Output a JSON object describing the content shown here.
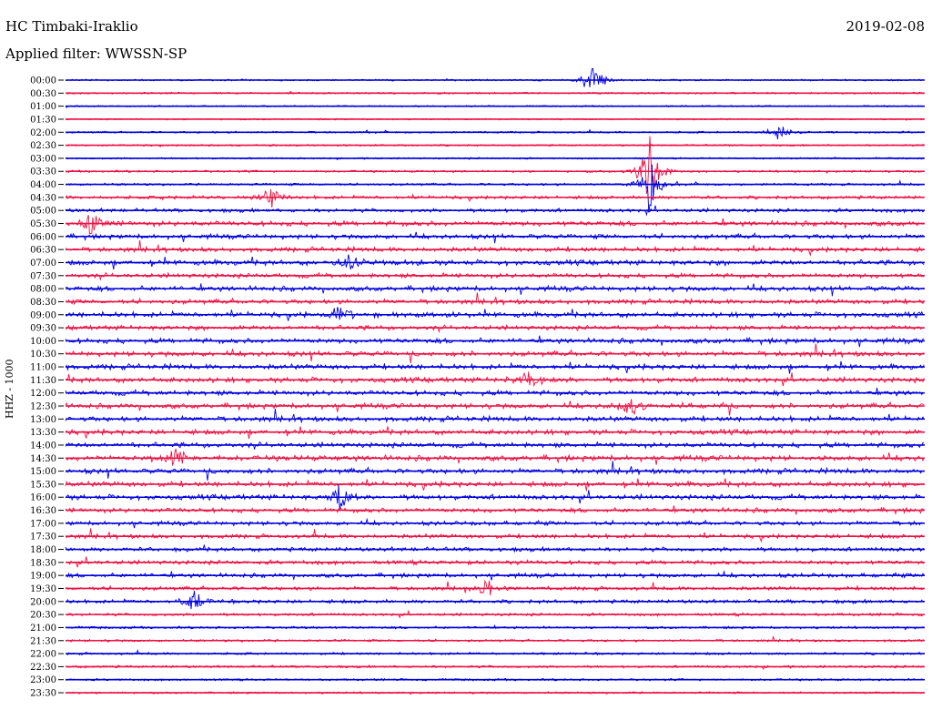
{
  "header": {
    "station": "HC Timbaki-Iraklio",
    "filter": "Applied filter: WWSSN-SP",
    "date": "2019-02-08",
    "channel": "HHZ - 1000"
  },
  "chart_data": {
    "type": "line",
    "title": "HC Timbaki-Iraklio",
    "xlabel": "",
    "ylabel": "HHZ - 1000",
    "x": [
      0,
      30
    ],
    "rows": [
      {
        "label": "00:00",
        "color": "#0000dd",
        "activity": 0.15
      },
      {
        "label": "00:30",
        "color": "#ee1144",
        "activity": 0.15
      },
      {
        "label": "01:00",
        "color": "#0000dd",
        "activity": 0.1
      },
      {
        "label": "01:30",
        "color": "#ee1144",
        "activity": 0.1
      },
      {
        "label": "02:00",
        "color": "#0000dd",
        "activity": 0.2
      },
      {
        "label": "02:30",
        "color": "#ee1144",
        "activity": 0.15
      },
      {
        "label": "03:00",
        "color": "#0000dd",
        "activity": 0.15
      },
      {
        "label": "03:30",
        "color": "#ee1144",
        "activity": 0.25
      },
      {
        "label": "04:00",
        "color": "#0000dd",
        "activity": 0.3
      },
      {
        "label": "04:30",
        "color": "#ee1144",
        "activity": 0.5
      },
      {
        "label": "05:00",
        "color": "#0000dd",
        "activity": 0.6
      },
      {
        "label": "05:30",
        "color": "#ee1144",
        "activity": 0.9
      },
      {
        "label": "06:00",
        "color": "#0000dd",
        "activity": 0.8
      },
      {
        "label": "06:30",
        "color": "#ee1144",
        "activity": 0.8
      },
      {
        "label": "07:00",
        "color": "#0000dd",
        "activity": 0.9
      },
      {
        "label": "07:30",
        "color": "#ee1144",
        "activity": 0.8
      },
      {
        "label": "08:00",
        "color": "#0000dd",
        "activity": 0.9
      },
      {
        "label": "08:30",
        "color": "#ee1144",
        "activity": 0.8
      },
      {
        "label": "09:00",
        "color": "#0000dd",
        "activity": 0.9
      },
      {
        "label": "09:30",
        "color": "#ee1144",
        "activity": 0.8
      },
      {
        "label": "10:00",
        "color": "#0000dd",
        "activity": 0.9
      },
      {
        "label": "10:30",
        "color": "#ee1144",
        "activity": 0.9
      },
      {
        "label": "11:00",
        "color": "#0000dd",
        "activity": 0.9
      },
      {
        "label": "11:30",
        "color": "#ee1144",
        "activity": 0.9
      },
      {
        "label": "12:00",
        "color": "#0000dd",
        "activity": 0.9
      },
      {
        "label": "12:30",
        "color": "#ee1144",
        "activity": 0.9
      },
      {
        "label": "13:00",
        "color": "#0000dd",
        "activity": 0.9
      },
      {
        "label": "13:30",
        "color": "#ee1144",
        "activity": 0.9
      },
      {
        "label": "14:00",
        "color": "#0000dd",
        "activity": 0.9
      },
      {
        "label": "14:30",
        "color": "#ee1144",
        "activity": 1.0
      },
      {
        "label": "15:00",
        "color": "#0000dd",
        "activity": 0.9
      },
      {
        "label": "15:30",
        "color": "#ee1144",
        "activity": 0.9
      },
      {
        "label": "16:00",
        "color": "#0000dd",
        "activity": 0.9
      },
      {
        "label": "16:30",
        "color": "#ee1144",
        "activity": 0.8
      },
      {
        "label": "17:00",
        "color": "#0000dd",
        "activity": 0.7
      },
      {
        "label": "17:30",
        "color": "#ee1144",
        "activity": 0.7
      },
      {
        "label": "18:00",
        "color": "#0000dd",
        "activity": 0.7
      },
      {
        "label": "18:30",
        "color": "#ee1144",
        "activity": 0.7
      },
      {
        "label": "19:00",
        "color": "#0000dd",
        "activity": 0.7
      },
      {
        "label": "19:30",
        "color": "#ee1144",
        "activity": 0.6
      },
      {
        "label": "20:00",
        "color": "#0000dd",
        "activity": 0.6
      },
      {
        "label": "20:30",
        "color": "#ee1144",
        "activity": 0.4
      },
      {
        "label": "21:00",
        "color": "#0000dd",
        "activity": 0.3
      },
      {
        "label": "21:30",
        "color": "#ee1144",
        "activity": 0.3
      },
      {
        "label": "22:00",
        "color": "#0000dd",
        "activity": 0.3
      },
      {
        "label": "22:30",
        "color": "#ee1144",
        "activity": 0.3
      },
      {
        "label": "23:00",
        "color": "#0000dd",
        "activity": 0.25
      },
      {
        "label": "23:30",
        "color": "#ee1144",
        "activity": 0.2
      }
    ],
    "events": [
      {
        "row": "00:00",
        "t": 0.615,
        "amp": 1.3
      },
      {
        "row": "03:30",
        "t": 0.68,
        "amp": 2.5
      },
      {
        "row": "04:00",
        "t": 0.68,
        "amp": 1.6
      },
      {
        "row": "02:00",
        "t": 0.83,
        "amp": 0.5
      },
      {
        "row": "04:30",
        "t": 0.24,
        "amp": 0.6
      },
      {
        "row": "05:30",
        "t": 0.03,
        "amp": 0.6
      },
      {
        "row": "07:00",
        "t": 0.33,
        "amp": 0.5
      },
      {
        "row": "09:00",
        "t": 0.32,
        "amp": 0.6
      },
      {
        "row": "11:30",
        "t": 0.54,
        "amp": 0.6
      },
      {
        "row": "12:30",
        "t": 0.66,
        "amp": 0.7
      },
      {
        "row": "14:30",
        "t": 0.13,
        "amp": 0.5
      },
      {
        "row": "16:00",
        "t": 0.32,
        "amp": 0.6
      },
      {
        "row": "19:30",
        "t": 0.49,
        "amp": 0.5
      },
      {
        "row": "20:00",
        "t": 0.15,
        "amp": 0.6
      }
    ]
  }
}
